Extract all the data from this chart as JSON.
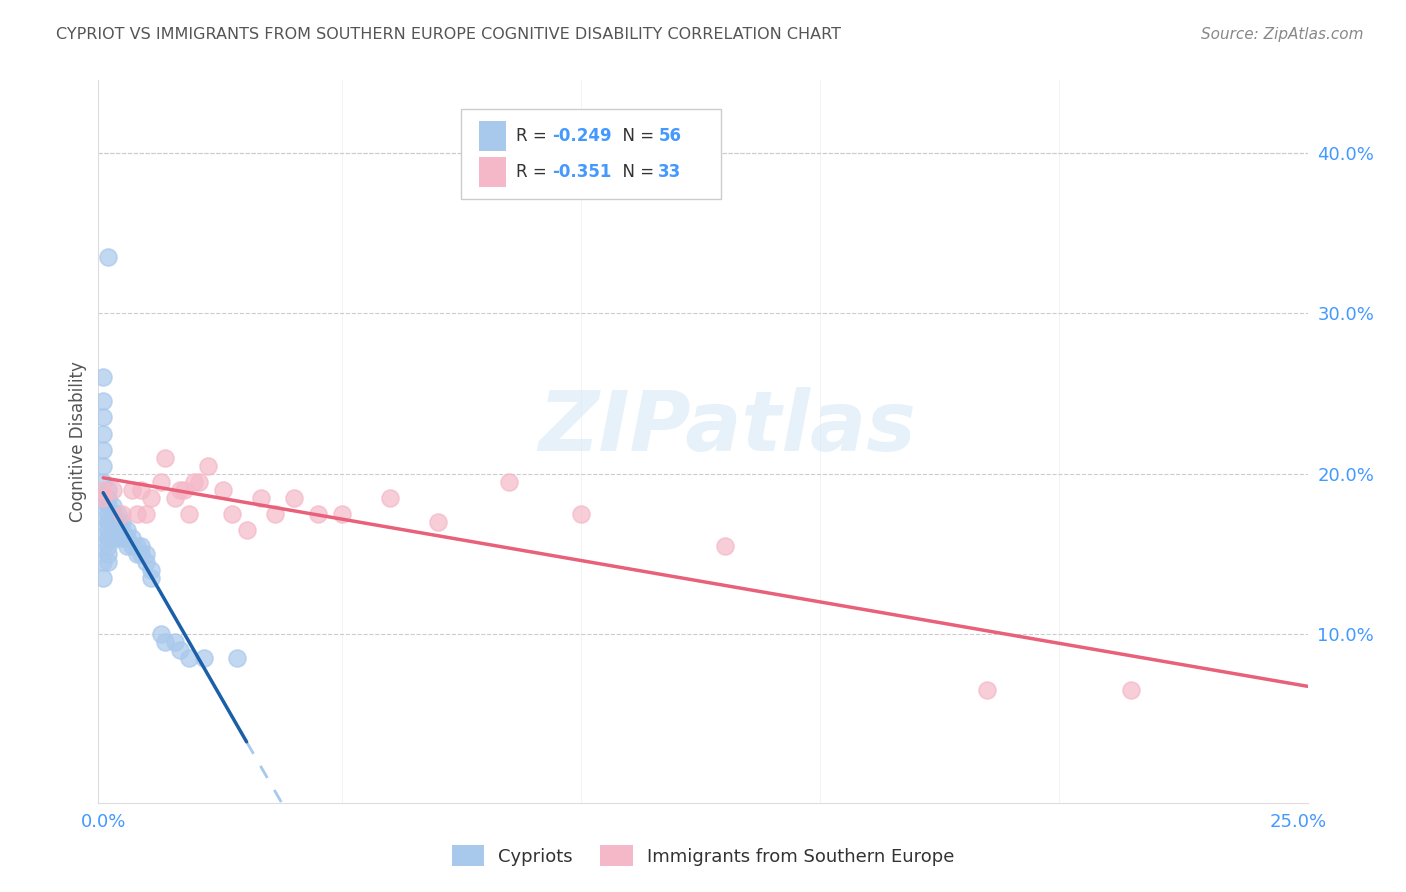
{
  "title": "CYPRIOT VS IMMIGRANTS FROM SOUTHERN EUROPE COGNITIVE DISABILITY CORRELATION CHART",
  "source": "Source: ZipAtlas.com",
  "ylabel": "Cognitive Disability",
  "y_tick_vals": [
    0.1,
    0.2,
    0.3,
    0.4
  ],
  "x_lim": [
    -0.001,
    0.252
  ],
  "y_lim": [
    -0.005,
    0.445
  ],
  "legend1_R": "-0.249",
  "legend1_N": "56",
  "legend2_R": "-0.351",
  "legend2_N": "33",
  "legend_label1": "Cypriots",
  "legend_label2": "Immigrants from Southern Europe",
  "blue_color": "#A8C8EC",
  "pink_color": "#F5B8C8",
  "blue_line_color": "#1A5FA8",
  "pink_line_color": "#E8607A",
  "blue_dash_color": "#A8C8EC",
  "cypriot_x": [
    0.001,
    0.0,
    0.0,
    0.0,
    0.0,
    0.0,
    0.0,
    0.0,
    0.0,
    0.0,
    0.0,
    0.0,
    0.0,
    0.0,
    0.001,
    0.001,
    0.001,
    0.001,
    0.001,
    0.001,
    0.001,
    0.001,
    0.001,
    0.001,
    0.002,
    0.002,
    0.002,
    0.002,
    0.002,
    0.003,
    0.003,
    0.003,
    0.003,
    0.004,
    0.004,
    0.004,
    0.005,
    0.005,
    0.005,
    0.006,
    0.006,
    0.007,
    0.007,
    0.008,
    0.008,
    0.009,
    0.009,
    0.01,
    0.01,
    0.012,
    0.013,
    0.015,
    0.016,
    0.018,
    0.021,
    0.028
  ],
  "cypriot_y": [
    0.335,
    0.26,
    0.245,
    0.235,
    0.225,
    0.215,
    0.205,
    0.195,
    0.185,
    0.175,
    0.165,
    0.155,
    0.145,
    0.135,
    0.19,
    0.185,
    0.18,
    0.175,
    0.17,
    0.165,
    0.16,
    0.155,
    0.15,
    0.145,
    0.18,
    0.175,
    0.17,
    0.165,
    0.16,
    0.175,
    0.17,
    0.165,
    0.16,
    0.17,
    0.165,
    0.16,
    0.165,
    0.16,
    0.155,
    0.16,
    0.155,
    0.155,
    0.15,
    0.155,
    0.15,
    0.15,
    0.145,
    0.14,
    0.135,
    0.1,
    0.095,
    0.095,
    0.09,
    0.085,
    0.085,
    0.085
  ],
  "southern_x": [
    0.0,
    0.0,
    0.002,
    0.004,
    0.006,
    0.007,
    0.008,
    0.009,
    0.01,
    0.012,
    0.013,
    0.015,
    0.016,
    0.017,
    0.018,
    0.019,
    0.02,
    0.022,
    0.025,
    0.027,
    0.03,
    0.033,
    0.036,
    0.04,
    0.045,
    0.05,
    0.06,
    0.07,
    0.085,
    0.1,
    0.13,
    0.185,
    0.215
  ],
  "southern_y": [
    0.19,
    0.185,
    0.19,
    0.175,
    0.19,
    0.175,
    0.19,
    0.175,
    0.185,
    0.195,
    0.21,
    0.185,
    0.19,
    0.19,
    0.175,
    0.195,
    0.195,
    0.205,
    0.19,
    0.175,
    0.165,
    0.185,
    0.175,
    0.185,
    0.175,
    0.175,
    0.185,
    0.17,
    0.195,
    0.175,
    0.155,
    0.065,
    0.065
  ],
  "watermark_text": "ZIPatlas",
  "title_color": "#555555",
  "axis_color": "#4499FF",
  "source_color": "#888888"
}
